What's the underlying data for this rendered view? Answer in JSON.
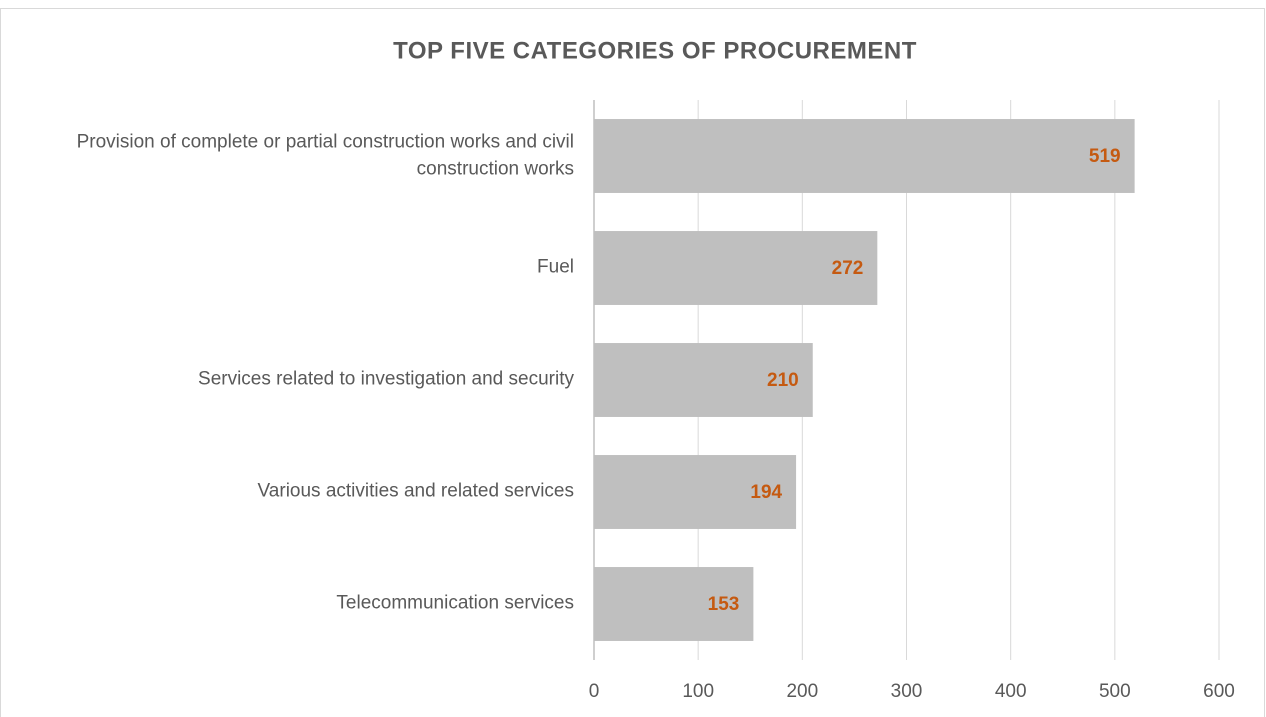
{
  "chart_data": {
    "type": "hbar",
    "title": "TOP FIVE CATEGORIES OF PROCUREMENT",
    "categories": [
      "Provision of complete or partial construction works and civil construction works",
      "Fuel",
      "Services related to investigation and security",
      "Various activities and related services",
      "Telecommunication services"
    ],
    "values": [
      519,
      272,
      210,
      194,
      153
    ],
    "color": "#bfbfbf",
    "label_color": "#c55a11",
    "xlim": [
      0,
      600
    ],
    "xticks": [
      0,
      100,
      200,
      300,
      400,
      500,
      600
    ],
    "grid": true
  }
}
